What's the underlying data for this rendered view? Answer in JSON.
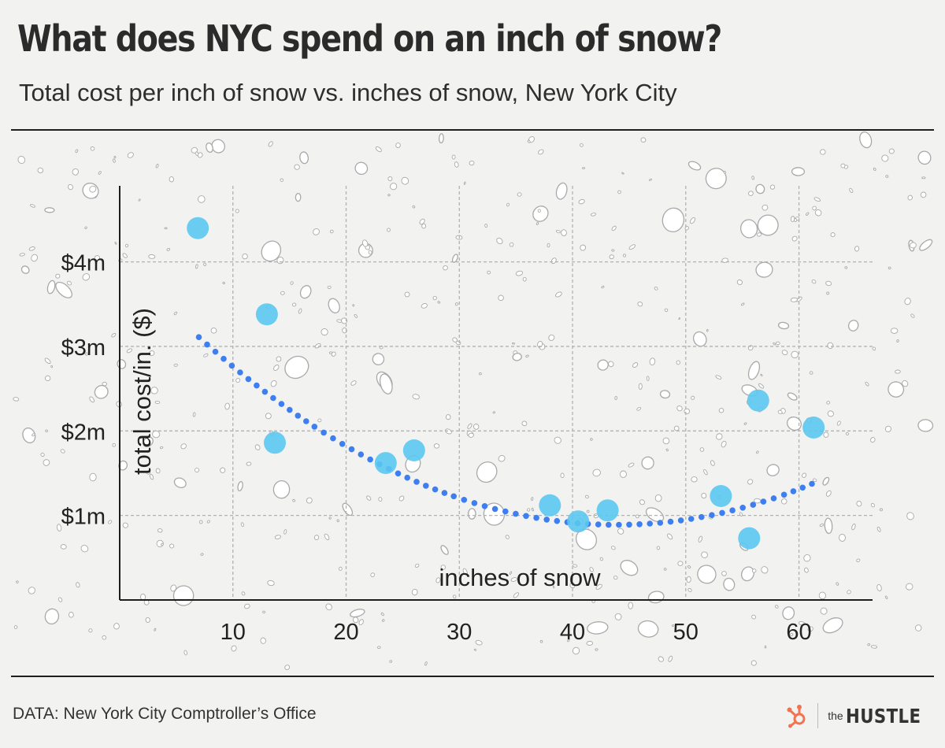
{
  "header": {
    "title": "What does NYC spend on an inch of snow?",
    "subtitle": "Total cost per inch of snow vs. inches of snow, New York City"
  },
  "footer": {
    "source": "DATA: New York City Comptroller’s Office",
    "brand_the": "the",
    "brand_name": "HUSTLE"
  },
  "colors": {
    "point": "#5bc8f0",
    "trend": "#3d7ff0",
    "grid": "#b2b2b2",
    "axis": "#1e1e1e",
    "brand_accent": "#f0744f"
  },
  "icons": {
    "brand": "hubspot-sprocket-icon"
  },
  "chart_data": {
    "type": "scatter",
    "title": "What does NYC spend on an inch of snow?",
    "subtitle": "Total cost per inch of snow vs. inches of snow, New York City",
    "xlabel": "inches of snow",
    "ylabel": "total cost/in. ($)",
    "xlim": [
      0,
      66.5
    ],
    "ylim": [
      0,
      4.9
    ],
    "x_ticks": [
      10,
      20,
      30,
      40,
      50,
      60
    ],
    "x_tick_labels": [
      "10",
      "20",
      "30",
      "40",
      "50",
      "60"
    ],
    "y_ticks": [
      1,
      2,
      3,
      4
    ],
    "y_tick_labels": [
      "$1m",
      "$2m",
      "$3m",
      "$4m"
    ],
    "y_unit": "million dollars",
    "grid": true,
    "legend": "none",
    "points": [
      {
        "x": 6.9,
        "y": 4.4
      },
      {
        "x": 13.0,
        "y": 3.38
      },
      {
        "x": 13.7,
        "y": 1.86
      },
      {
        "x": 23.5,
        "y": 1.62
      },
      {
        "x": 26.0,
        "y": 1.77
      },
      {
        "x": 38.0,
        "y": 1.12
      },
      {
        "x": 40.5,
        "y": 0.93
      },
      {
        "x": 43.1,
        "y": 1.06
      },
      {
        "x": 53.1,
        "y": 1.23
      },
      {
        "x": 55.6,
        "y": 0.73
      },
      {
        "x": 56.4,
        "y": 2.36
      },
      {
        "x": 61.3,
        "y": 2.04
      }
    ],
    "trendline": {
      "type": "quadratic",
      "x_range": [
        6.9,
        61.6
      ],
      "coefficients": {
        "a": 0.00163,
        "b": -0.1431,
        "c": 4.03
      }
    }
  }
}
